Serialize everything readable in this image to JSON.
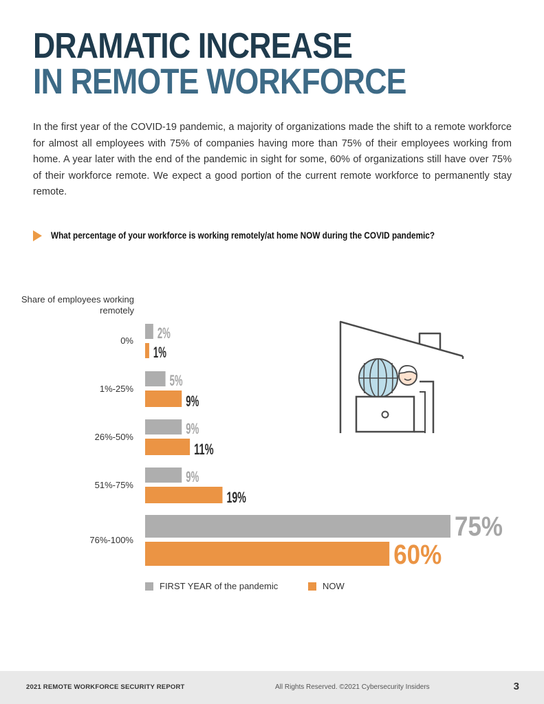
{
  "header": {
    "title_line1": "DRAMATIC INCREASE",
    "title_line2": "IN REMOTE WORKFORCE"
  },
  "intro": "In the first year of the COVID-19 pandemic, a majority of organizations made the shift to a remote workforce for almost all employees with 75% of companies having more than 75% of their employees working from home. A year later with the end of the pandemic in sight for some, 60% of organizations still have over 75% of their workforce remote. We expect a good portion of the current remote workforce to permanently stay remote.",
  "question": "What percentage of your workforce is working remotely/at home NOW during the COVID pandemic?",
  "colors": {
    "first_year": "#aeaeae",
    "now": "#eb9444",
    "title_dark": "#1f3b4d",
    "title_blue": "#3d6a86",
    "accent_arrow": "#ec9a45"
  },
  "chart_data": {
    "type": "bar",
    "orientation": "horizontal",
    "title": "What percentage of your workforce is working remotely/at home NOW during the COVID pandemic?",
    "ylabel": "Share of employees working remotely",
    "xlabel": "",
    "categories": [
      "0%",
      "1%-25%",
      "26%-50%",
      "51%-75%",
      "76%-100%"
    ],
    "series": [
      {
        "name": "FIRST YEAR of the pandemic",
        "values": [
          2,
          5,
          9,
          9,
          75
        ],
        "labels": [
          "2%",
          "5%",
          "9%",
          "9%",
          "75%"
        ]
      },
      {
        "name": "NOW",
        "values": [
          1,
          9,
          11,
          19,
          60
        ],
        "labels": [
          "1%",
          "9%",
          "11%",
          "19%",
          "60%"
        ]
      }
    ],
    "xlim": [
      0,
      75
    ],
    "grid": false,
    "legend_position": "bottom-left"
  },
  "legend": {
    "first_year": "FIRST YEAR of the pandemic",
    "now": "NOW"
  },
  "illustration": {
    "icon": "remote-worker-at-home-icon"
  },
  "footer": {
    "report_name": "2021 REMOTE WORKFORCE SECURITY REPORT",
    "rights": "All Rights Reserved.  ©2021 Cybersecurity Insiders",
    "page_number": "3"
  }
}
